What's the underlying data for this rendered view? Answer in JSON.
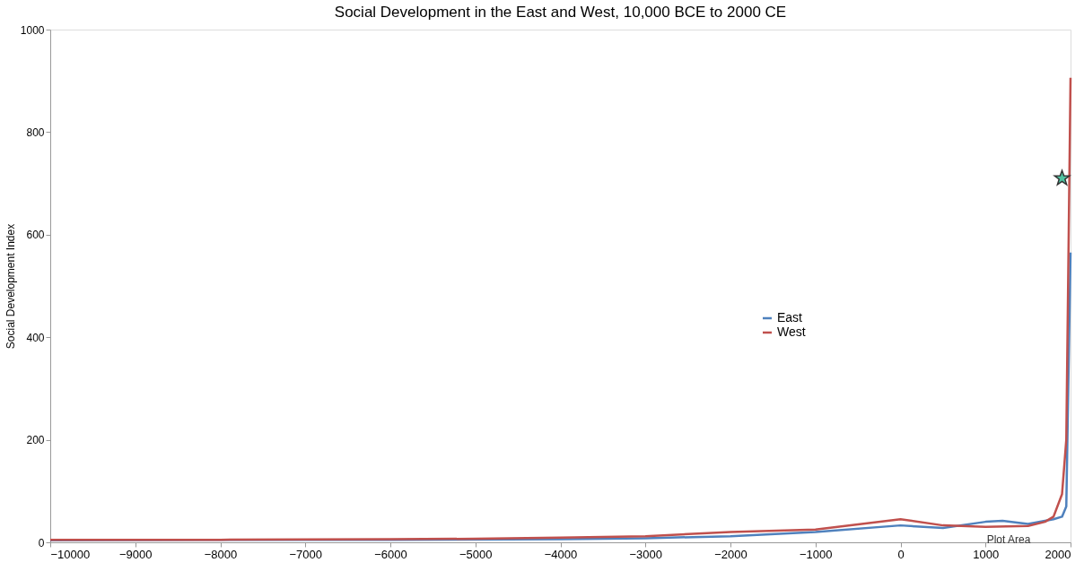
{
  "chart_data": {
    "type": "line",
    "title": "Social Development in the East and West, 10,000 BCE to 2000 CE",
    "ylabel": "Social Development Index",
    "xlim": [
      -10000,
      2000
    ],
    "xticks": [
      -10000,
      -9000,
      -8000,
      -7000,
      -6000,
      -5000,
      -4000,
      -3000,
      -2000,
      -1000,
      0,
      1000,
      2000
    ],
    "ylim": [
      0,
      1000
    ],
    "yticks": [
      0,
      200,
      400,
      600,
      800,
      1000
    ],
    "grid": false,
    "legend": "right",
    "line_style": "solid",
    "series": [
      {
        "name": "East",
        "color": "#4f81bd",
        "x": [
          -10000,
          -8000,
          -6000,
          -4000,
          -3000,
          -2000,
          -1000,
          0,
          500,
          1000,
          1200,
          1500,
          1800,
          1900,
          1950,
          2000
        ],
        "values": [
          4,
          5,
          5,
          6,
          8,
          12,
          20,
          33,
          28,
          40,
          42,
          36,
          45,
          50,
          70,
          565
        ]
      },
      {
        "name": "West",
        "color": "#c0504d",
        "x": [
          -10000,
          -8000,
          -6000,
          -5000,
          -4000,
          -3000,
          -2000,
          -1000,
          0,
          500,
          1000,
          1500,
          1700,
          1800,
          1900,
          1950,
          2000
        ],
        "values": [
          5,
          5,
          6,
          7,
          9,
          12,
          20,
          25,
          45,
          33,
          30,
          32,
          40,
          50,
          94,
          200,
          906
        ]
      },
      {
        "type": "scatter",
        "marker": "star",
        "color": "#4fc3a1",
        "x": [
          1900
        ],
        "values": [
          710
        ]
      }
    ],
    "annotations": [
      "Plot Area"
    ]
  }
}
